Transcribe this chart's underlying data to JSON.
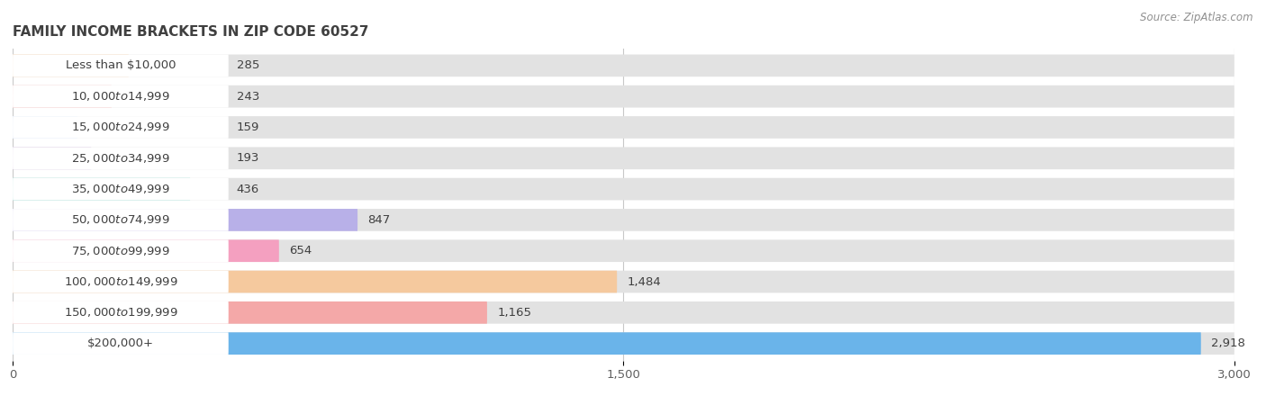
{
  "title": "FAMILY INCOME BRACKETS IN ZIP CODE 60527",
  "source": "Source: ZipAtlas.com",
  "categories": [
    "Less than $10,000",
    "$10,000 to $14,999",
    "$15,000 to $24,999",
    "$25,000 to $34,999",
    "$35,000 to $49,999",
    "$50,000 to $74,999",
    "$75,000 to $99,999",
    "$100,000 to $149,999",
    "$150,000 to $199,999",
    "$200,000+"
  ],
  "values": [
    285,
    243,
    159,
    193,
    436,
    847,
    654,
    1484,
    1165,
    2918
  ],
  "bar_colors": [
    "#f5c99e",
    "#f4a8a8",
    "#b0c8f0",
    "#c8aad8",
    "#7dd4c8",
    "#b8b0e8",
    "#f4a0c0",
    "#f5c99e",
    "#f4a8a8",
    "#6ab4ea"
  ],
  "xlim": [
    0,
    3000
  ],
  "xticks": [
    0,
    1500,
    3000
  ],
  "value_labels": [
    "285",
    "243",
    "159",
    "193",
    "436",
    "847",
    "654",
    "1,484",
    "1,165",
    "2,918"
  ],
  "bg_color": "#f0f0f0",
  "bar_bg_color": "#e2e2e2",
  "bar_row_bg": "#ffffff",
  "title_color": "#404040",
  "label_color": "#404040",
  "source_color": "#909090",
  "bar_height": 0.72
}
